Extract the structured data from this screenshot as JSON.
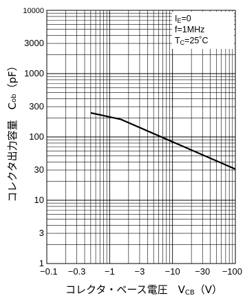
{
  "chart_data": {
    "type": "line",
    "x_scale": "log",
    "y_scale": "log",
    "x_ticks": [
      {
        "v": 0.1,
        "label": "−0.1"
      },
      {
        "v": 0.3,
        "label": "−0.3"
      },
      {
        "v": 1,
        "label": "−1"
      },
      {
        "v": 3,
        "label": "−3"
      },
      {
        "v": 10,
        "label": "−10"
      },
      {
        "v": 30,
        "label": "−30"
      },
      {
        "v": 100,
        "label": "−100"
      }
    ],
    "y_ticks": [
      {
        "v": 1,
        "label": "1"
      },
      {
        "v": 3,
        "label": "3"
      },
      {
        "v": 10,
        "label": "10"
      },
      {
        "v": 30,
        "label": "30"
      },
      {
        "v": 100,
        "label": "100"
      },
      {
        "v": 300,
        "label": "300"
      },
      {
        "v": 1000,
        "label": "1000"
      },
      {
        "v": 3000,
        "label": "3000"
      },
      {
        "v": 10000,
        "label": "10000"
      }
    ],
    "xlim": [
      0.1,
      100
    ],
    "ylim": [
      1,
      10000
    ],
    "xlabel": {
      "main": "コレクタ・ベース電圧　V",
      "sub": "CB",
      "unit": "（V）"
    },
    "ylabel": {
      "main": "コレクタ出力容量　C",
      "sub": "ob",
      "unit": "（pF）"
    },
    "grid": true,
    "conditions": [
      {
        "main": "I",
        "sub": "E",
        "rest": "=0"
      },
      {
        "main": "f=1MHz",
        "sub": "",
        "rest": ""
      },
      {
        "main": "T",
        "sub": "C",
        "rest": "=25˚C"
      }
    ],
    "series": [
      {
        "x": [
          0.5,
          1.5,
          100
        ],
        "y": [
          240,
          190,
          31
        ]
      }
    ],
    "line_color": "#000000"
  }
}
